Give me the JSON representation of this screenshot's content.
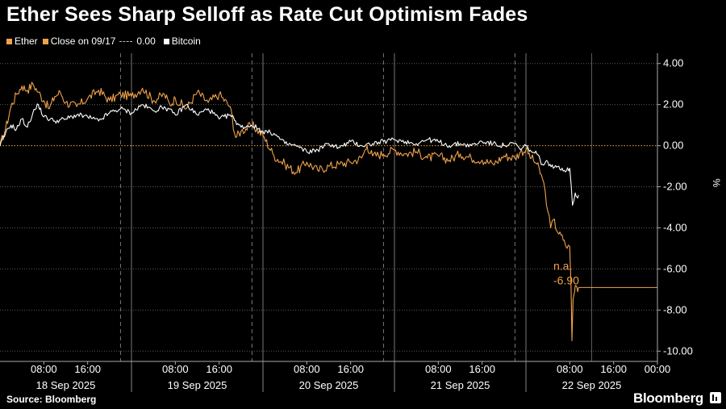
{
  "title": "Ether Sees Sharp Selloff as Rate Cut Optimism Fades",
  "legend": {
    "ether": "Ether",
    "close_label": "Close on 09/17",
    "close_value": "0.00",
    "bitcoin": "Bitcoin"
  },
  "source": "Source: Bloomberg",
  "brand": "Bloomberg",
  "colors": {
    "ether": "#f0a24a",
    "bitcoin": "#ffffff",
    "background": "#000000"
  },
  "chart_data": {
    "type": "line",
    "y_axis_label": "%",
    "ylim": [
      -10.5,
      4.5
    ],
    "y_ticks": [
      4.0,
      2.0,
      0.0,
      -2.0,
      -4.0,
      -6.0,
      -8.0,
      -10.0
    ],
    "y_tick_labels": [
      "4.00",
      "2.00",
      "0.00",
      "-2.00",
      "-4.00",
      "-6.00",
      "-8.00",
      "-10.00"
    ],
    "x_range_hours": [
      0,
      120
    ],
    "x_tick_labels": [
      {
        "h": 8,
        "label": "08:00"
      },
      {
        "h": 16,
        "label": "16:00"
      },
      {
        "h": 32,
        "label": "08:00"
      },
      {
        "h": 40,
        "label": "16:00"
      },
      {
        "h": 56,
        "label": "08:00"
      },
      {
        "h": 64,
        "label": "16:00"
      },
      {
        "h": 80,
        "label": "08:00"
      },
      {
        "h": 88,
        "label": "16:00"
      },
      {
        "h": 104,
        "label": "08:00"
      },
      {
        "h": 112,
        "label": "16:00"
      },
      {
        "h": 120,
        "label": "00:00"
      }
    ],
    "day_labels": [
      {
        "h": 12,
        "label": "18 Sep 2025"
      },
      {
        "h": 36,
        "label": "19 Sep 2025"
      },
      {
        "h": 60,
        "label": "20 Sep 2025"
      },
      {
        "h": 84,
        "label": "21 Sep 2025"
      },
      {
        "h": 108,
        "label": "22 Sep 2025"
      }
    ],
    "day_boundaries_h": [
      24,
      48,
      72,
      96
    ],
    "dashed_grid_h": [
      22,
      46,
      70,
      94
    ],
    "reference_line": 0.0,
    "annotation": {
      "label": "n.a.",
      "value": "-6.90",
      "y": -6.9
    },
    "series": [
      {
        "name": "Ether",
        "x_hours": [
          0,
          1,
          2,
          3,
          4,
          5,
          6,
          7,
          8,
          9,
          10,
          11,
          12,
          14,
          16,
          18,
          20,
          22,
          24,
          26,
          28,
          30,
          31,
          32,
          34,
          36,
          38,
          40,
          42,
          43,
          44,
          46,
          48,
          50,
          52,
          54,
          56,
          58,
          60,
          62,
          64,
          66,
          67,
          68,
          70,
          72,
          74,
          76,
          78,
          80,
          82,
          84,
          86,
          88,
          90,
          92,
          94,
          95,
          96,
          97,
          98,
          99,
          99.5,
          100,
          100.5,
          101,
          102,
          103,
          103.5,
          104,
          104.2,
          104.4,
          104.6,
          104.8,
          105.0,
          105.3,
          105.6
        ],
        "values": [
          0.0,
          0.8,
          1.9,
          2.5,
          2.9,
          2.7,
          3.0,
          2.6,
          2.2,
          1.8,
          2.4,
          2.6,
          2.1,
          1.9,
          2.3,
          2.7,
          2.2,
          2.5,
          2.4,
          2.8,
          2.2,
          2.5,
          2.0,
          2.3,
          1.8,
          2.6,
          2.1,
          2.5,
          1.9,
          0.4,
          0.7,
          1.0,
          0.5,
          -0.5,
          -0.9,
          -1.3,
          -0.8,
          -1.2,
          -1.0,
          -0.9,
          -0.8,
          -0.6,
          0.0,
          -0.5,
          -0.4,
          -0.2,
          -0.4,
          -0.3,
          -0.6,
          -0.5,
          -0.7,
          -0.4,
          -0.6,
          -0.7,
          -0.9,
          -0.5,
          -0.6,
          -0.3,
          -0.2,
          -0.6,
          -0.9,
          -1.6,
          -2.2,
          -3.2,
          -4.0,
          -3.6,
          -4.3,
          -4.6,
          -5.0,
          -4.9,
          -6.5,
          -9.5,
          -7.5,
          -7.2,
          -6.8,
          -6.9,
          -6.9
        ]
      },
      {
        "name": "Bitcoin",
        "x_hours": [
          0,
          1,
          2,
          3,
          4,
          5,
          6,
          7,
          8,
          10,
          12,
          14,
          16,
          18,
          20,
          22,
          24,
          26,
          28,
          30,
          32,
          34,
          36,
          38,
          40,
          42,
          43,
          44,
          46,
          48,
          50,
          52,
          54,
          56,
          58,
          60,
          62,
          64,
          66,
          68,
          70,
          72,
          74,
          76,
          78,
          80,
          82,
          84,
          86,
          88,
          90,
          92,
          94,
          95,
          96,
          97,
          98,
          99,
          100,
          101,
          102,
          103,
          104,
          104.5,
          105,
          105.3,
          105.6
        ],
        "values": [
          0.0,
          0.6,
          1.0,
          0.8,
          1.3,
          0.9,
          1.6,
          2.0,
          1.4,
          1.2,
          1.3,
          1.5,
          1.4,
          1.2,
          1.6,
          1.8,
          1.6,
          2.0,
          1.7,
          1.9,
          1.5,
          2.0,
          1.5,
          1.8,
          1.3,
          1.5,
          1.2,
          0.9,
          1.0,
          0.7,
          0.6,
          0.1,
          0.0,
          -0.3,
          -0.2,
          0.1,
          -0.1,
          0.2,
          0.0,
          0.1,
          0.2,
          0.3,
          0.2,
          0.1,
          0.3,
          0.2,
          0.0,
          0.1,
          0.0,
          0.2,
          0.1,
          0.0,
          0.1,
          -0.2,
          0.0,
          -0.3,
          -0.4,
          -0.9,
          -0.8,
          -1.1,
          -1.0,
          -1.2,
          -1.1,
          -2.9,
          -2.3,
          -2.5,
          -2.4
        ]
      }
    ]
  }
}
